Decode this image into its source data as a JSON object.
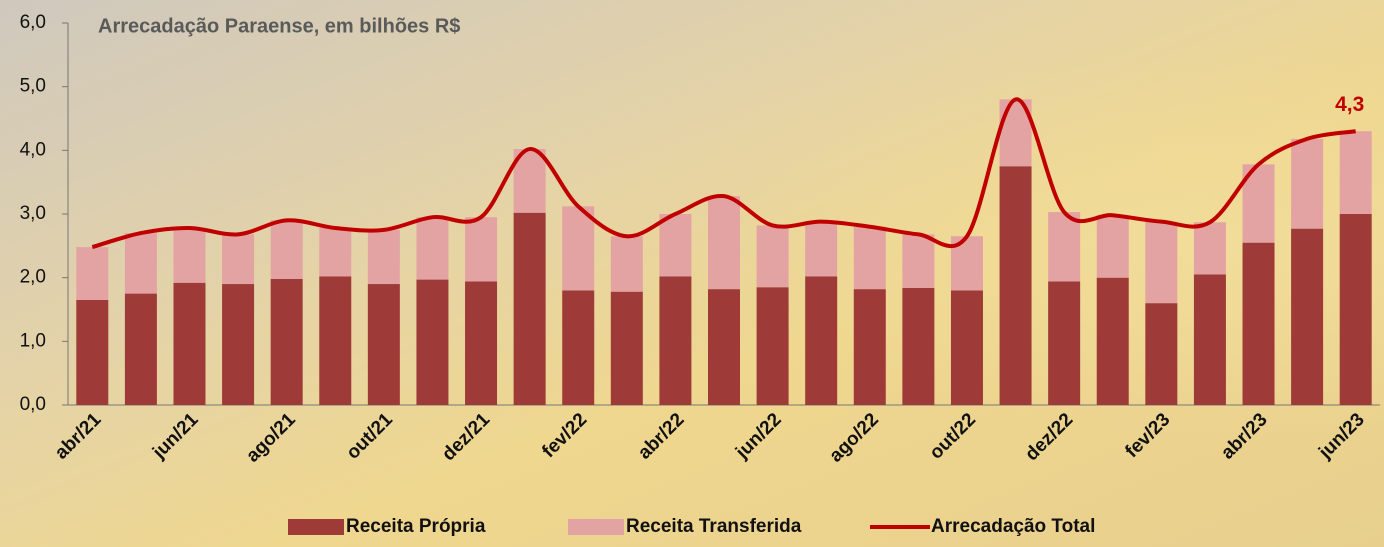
{
  "chart_data": {
    "type": "bar-line",
    "title": "Arrecadação Paraense, em bilhões R$",
    "categories": [
      "abr/21",
      null,
      "jun/21",
      null,
      "ago/21",
      null,
      "out/21",
      null,
      "dez/21",
      null,
      "fev/22",
      null,
      "abr/22",
      null,
      "jun/22",
      null,
      "ago/22",
      null,
      "out/22",
      null,
      "dez/22",
      null,
      "fev/23",
      null,
      "abr/23",
      null,
      "jun/23"
    ],
    "series": [
      {
        "name": "Receita Própria",
        "type": "bar",
        "color": "#9e3b38",
        "values": [
          1.65,
          1.75,
          1.92,
          1.9,
          1.98,
          2.02,
          1.9,
          1.97,
          1.94,
          3.02,
          1.8,
          1.78,
          2.02,
          1.82,
          1.85,
          2.02,
          1.82,
          1.84,
          1.8,
          3.75,
          1.94,
          2.0,
          1.6,
          2.05,
          2.55,
          2.77,
          3.0
        ]
      },
      {
        "name": "Receita Transferida",
        "type": "bar",
        "color": "#e3a3a3",
        "values": [
          0.83,
          0.95,
          0.86,
          0.78,
          0.92,
          0.76,
          0.85,
          0.98,
          1.01,
          1.0,
          1.32,
          0.87,
          0.98,
          1.46,
          0.97,
          0.86,
          0.98,
          0.84,
          0.85,
          1.05,
          1.09,
          0.98,
          1.28,
          0.82,
          1.23,
          1.41,
          1.3
        ]
      },
      {
        "name": "Arrecadação Total",
        "type": "line",
        "color": "#c00000",
        "values": [
          2.48,
          2.7,
          2.78,
          2.68,
          2.9,
          2.78,
          2.75,
          2.95,
          2.95,
          4.02,
          3.12,
          2.65,
          3.0,
          3.28,
          2.82,
          2.88,
          2.8,
          2.68,
          2.65,
          4.8,
          3.03,
          2.98,
          2.88,
          2.87,
          3.78,
          4.18,
          4.3
        ],
        "value_labels": [
          null,
          null,
          null,
          null,
          null,
          null,
          null,
          null,
          null,
          null,
          null,
          null,
          null,
          null,
          null,
          null,
          null,
          null,
          null,
          null,
          null,
          null,
          null,
          null,
          null,
          null,
          "4,3"
        ]
      }
    ],
    "ylim": [
      0,
      6
    ],
    "yticks": [
      {
        "value": 0,
        "label": "0,0"
      },
      {
        "value": 1,
        "label": "1,0"
      },
      {
        "value": 2,
        "label": "2,0"
      },
      {
        "value": 3,
        "label": "3,0"
      },
      {
        "value": 4,
        "label": "4,0"
      },
      {
        "value": 5,
        "label": "5,0"
      },
      {
        "value": 6,
        "label": "6,0"
      }
    ],
    "stacked": true,
    "legend": "bottom"
  }
}
